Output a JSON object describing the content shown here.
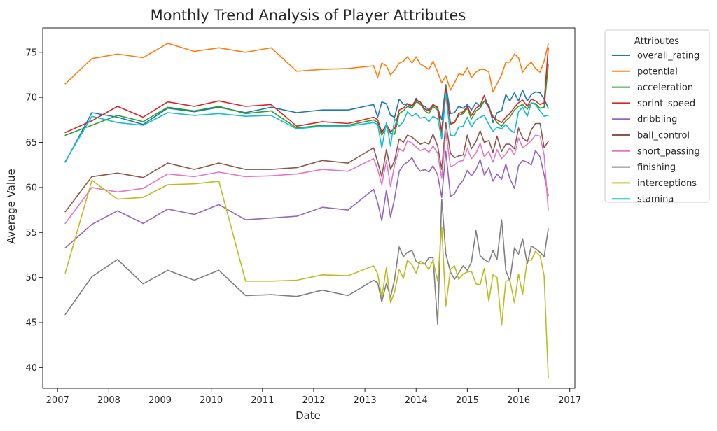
{
  "chart_data": {
    "type": "line",
    "title": "Monthly Trend Analysis of Player Attributes",
    "xlabel": "Date",
    "ylabel": "Average Value",
    "x_ticks": [
      "2007",
      "2008",
      "2009",
      "2010",
      "2011",
      "2012",
      "2013",
      "2014",
      "2015",
      "2016",
      "2017"
    ],
    "y_ticks": [
      "40",
      "45",
      "50",
      "55",
      "60",
      "65",
      "70",
      "75"
    ],
    "xlim": [
      2006.71,
      2017.1
    ],
    "ylim": [
      37.7,
      77.7
    ],
    "legend": {
      "title": "Attributes",
      "position": "outside-right"
    },
    "grid": false,
    "x": [
      2007.15,
      2007.67,
      2008.17,
      2008.67,
      2009.15,
      2009.67,
      2010.15,
      2010.67,
      2011.17,
      2011.67,
      2012.17,
      2012.67,
      2013.17,
      2013.25,
      2013.33,
      2013.42,
      2013.5,
      2013.58,
      2013.67,
      2013.75,
      2013.83,
      2013.92,
      2014.0,
      2014.08,
      2014.17,
      2014.25,
      2014.33,
      2014.42,
      2014.5,
      2014.58,
      2014.67,
      2014.75,
      2014.83,
      2014.92,
      2015.0,
      2015.08,
      2015.17,
      2015.25,
      2015.33,
      2015.42,
      2015.5,
      2015.58,
      2015.67,
      2015.75,
      2015.83,
      2015.92,
      2016.0,
      2016.08,
      2016.17,
      2016.25,
      2016.33,
      2016.42,
      2016.5,
      2016.58
    ],
    "series": [
      {
        "name": "overall_rating",
        "color": "#1f77b4",
        "values": [
          62.8,
          68.3,
          67.8,
          67.0,
          68.8,
          68.4,
          68.9,
          68.3,
          68.9,
          68.3,
          68.6,
          68.6,
          69.2,
          67.8,
          69.5,
          69.3,
          68.0,
          67.8,
          69.8,
          69.2,
          69.3,
          68.8,
          69.9,
          69.2,
          69.0,
          68.6,
          69.2,
          68.8,
          67.5,
          71.4,
          68.2,
          68.3,
          69.0,
          68.8,
          69.2,
          68.6,
          69.4,
          69.0,
          69.6,
          69.2,
          67.2,
          68.3,
          68.5,
          70.3,
          69.6,
          70.5,
          69.6,
          70.8,
          69.6,
          70.3,
          70.6,
          70.5,
          69.8,
          68.8
        ]
      },
      {
        "name": "potential",
        "color": "#ff7f0e",
        "values": [
          71.5,
          74.3,
          74.8,
          74.4,
          76.0,
          75.1,
          75.5,
          75.0,
          75.5,
          72.9,
          73.1,
          73.2,
          73.5,
          72.2,
          73.8,
          73.5,
          72.5,
          73.0,
          73.8,
          74.0,
          74.5,
          73.8,
          74.5,
          73.7,
          73.4,
          73.1,
          74.0,
          72.8,
          71.6,
          72.4,
          70.8,
          71.6,
          72.6,
          72.5,
          73.3,
          72.2,
          72.8,
          73.1,
          73.1,
          72.8,
          70.6,
          71.5,
          72.5,
          73.9,
          73.9,
          74.8,
          74.4,
          72.8,
          73.5,
          73.9,
          73.2,
          72.8,
          74.0,
          75.9
        ]
      },
      {
        "name": "acceleration",
        "color": "#2ca02c",
        "values": [
          65.8,
          66.9,
          68.0,
          67.3,
          68.9,
          68.5,
          69.0,
          68.2,
          68.5,
          66.6,
          66.9,
          66.9,
          67.5,
          67.2,
          65.8,
          66.8,
          66.0,
          65.9,
          68.2,
          68.5,
          69.0,
          68.8,
          69.5,
          69.3,
          68.5,
          68.2,
          69.0,
          68.6,
          66.0,
          71.4,
          67.0,
          67.2,
          68.0,
          68.2,
          68.8,
          67.6,
          68.5,
          68.8,
          69.6,
          68.9,
          67.9,
          67.2,
          66.8,
          67.4,
          67.8,
          68.6,
          69.0,
          69.2,
          68.7,
          69.4,
          69.3,
          68.8,
          68.9,
          73.6
        ]
      },
      {
        "name": "sprint_speed",
        "color": "#d62728",
        "values": [
          66.1,
          67.4,
          69.0,
          67.8,
          69.5,
          69.0,
          69.6,
          69.0,
          69.2,
          66.8,
          67.3,
          67.1,
          67.8,
          67.5,
          66.1,
          67.0,
          66.2,
          66.5,
          68.6,
          68.8,
          69.3,
          69.1,
          69.7,
          69.5,
          68.7,
          68.5,
          69.2,
          68.9,
          66.2,
          71.0,
          67.1,
          67.2,
          68.2,
          68.4,
          69.0,
          68.0,
          68.8,
          69.1,
          70.2,
          68.8,
          67.8,
          67.5,
          67.2,
          67.8,
          68.2,
          68.9,
          69.4,
          69.7,
          69.0,
          69.8,
          69.6,
          69.2,
          69.4,
          75.5
        ]
      },
      {
        "name": "dribbling",
        "color": "#9467bd",
        "values": [
          53.3,
          55.9,
          57.4,
          56.0,
          57.6,
          57.0,
          58.1,
          56.4,
          56.6,
          56.8,
          57.8,
          57.5,
          59.8,
          58.3,
          56.3,
          59.7,
          56.7,
          58.8,
          61.8,
          62.5,
          62.8,
          63.3,
          62.4,
          61.8,
          62.0,
          61.7,
          62.4,
          61.4,
          58.9,
          64.0,
          59.0,
          59.3,
          60.2,
          60.8,
          61.9,
          61.3,
          62.0,
          63.1,
          61.4,
          62.2,
          60.7,
          61.5,
          60.9,
          62.6,
          61.0,
          59.9,
          62.4,
          63.0,
          62.8,
          62.5,
          64.1,
          63.4,
          61.4,
          59.1
        ]
      },
      {
        "name": "ball_control",
        "color": "#8c564b",
        "values": [
          57.3,
          61.2,
          61.6,
          61.1,
          62.7,
          62.0,
          62.7,
          62.0,
          62.0,
          62.2,
          63.0,
          62.7,
          64.4,
          62.8,
          61.2,
          64.2,
          62.0,
          63.0,
          65.4,
          65.0,
          65.8,
          65.6,
          65.2,
          64.8,
          65.0,
          64.8,
          65.9,
          64.6,
          62.0,
          67.2,
          63.8,
          63.3,
          63.5,
          63.6,
          65.8,
          64.3,
          65.1,
          66.3,
          65.0,
          65.2,
          63.9,
          65.7,
          64.0,
          64.8,
          64.8,
          64.3,
          66.6,
          65.5,
          65.1,
          66.4,
          67.1,
          67.1,
          64.4,
          65.1
        ]
      },
      {
        "name": "short_passing",
        "color": "#e377c2",
        "values": [
          56.0,
          60.0,
          59.5,
          59.9,
          61.5,
          61.2,
          61.7,
          61.2,
          61.3,
          61.5,
          62.0,
          61.8,
          63.2,
          62.0,
          60.3,
          63.0,
          60.1,
          62.5,
          64.3,
          64.0,
          65.2,
          64.9,
          64.5,
          64.1,
          64.3,
          63.9,
          64.6,
          63.8,
          61.0,
          66.2,
          62.3,
          62.5,
          62.9,
          63.0,
          64.3,
          63.2,
          63.8,
          64.9,
          63.4,
          64.0,
          62.8,
          64.2,
          63.2,
          63.7,
          64.4,
          63.6,
          65.5,
          64.4,
          64.8,
          65.2,
          65.8,
          65.7,
          63.6,
          57.5
        ]
      },
      {
        "name": "finishing",
        "color": "#7f7f7f",
        "values": [
          45.9,
          50.1,
          52.0,
          49.3,
          50.8,
          49.7,
          50.8,
          48.0,
          48.1,
          47.9,
          48.6,
          48.0,
          49.7,
          49.4,
          47.3,
          49.4,
          47.8,
          49.8,
          53.4,
          52.3,
          52.8,
          53.0,
          51.8,
          51.5,
          51.5,
          52.2,
          52.2,
          44.8,
          58.7,
          52.6,
          50.6,
          49.8,
          50.5,
          51.3,
          50.8,
          51.7,
          55.2,
          52.4,
          52.0,
          51.7,
          53.0,
          52.0,
          56.4,
          50.8,
          49.6,
          53.3,
          52.6,
          54.3,
          51.5,
          53.5,
          53.2,
          52.8,
          52.3,
          55.4
        ]
      },
      {
        "name": "interceptions",
        "color": "#bcbd22",
        "values": [
          50.5,
          60.8,
          58.7,
          58.9,
          60.3,
          60.4,
          60.7,
          49.6,
          49.6,
          49.7,
          50.3,
          50.2,
          51.3,
          50.4,
          47.8,
          51.1,
          47.2,
          48.4,
          50.9,
          49.9,
          51.9,
          51.4,
          50.5,
          51.8,
          51.5,
          50.9,
          51.9,
          49.6,
          55.6,
          46.8,
          50.9,
          51.3,
          49.8,
          50.4,
          50.6,
          50.7,
          49.3,
          49.2,
          51.0,
          47.4,
          50.3,
          50.0,
          44.7,
          49.6,
          49.7,
          47.2,
          50.4,
          48.1,
          52.0,
          51.9,
          52.9,
          52.4,
          50.2,
          38.9
        ]
      },
      {
        "name": "stamina",
        "color": "#17becf",
        "values": [
          62.9,
          67.9,
          67.2,
          66.9,
          68.3,
          68.0,
          68.2,
          67.9,
          68.0,
          66.5,
          66.8,
          66.8,
          67.2,
          67.0,
          64.4,
          67.2,
          64.6,
          67.6,
          66.8,
          67.3,
          68.4,
          67.9,
          68.2,
          67.7,
          67.8,
          67.3,
          67.9,
          67.6,
          65.4,
          70.4,
          65.8,
          65.7,
          66.7,
          66.8,
          67.8,
          66.7,
          67.5,
          67.8,
          68.0,
          67.0,
          66.2,
          66.7,
          66.5,
          67.0,
          66.4,
          66.1,
          68.4,
          68.9,
          67.9,
          69.4,
          69.2,
          68.5,
          67.9,
          68.0
        ]
      }
    ]
  }
}
